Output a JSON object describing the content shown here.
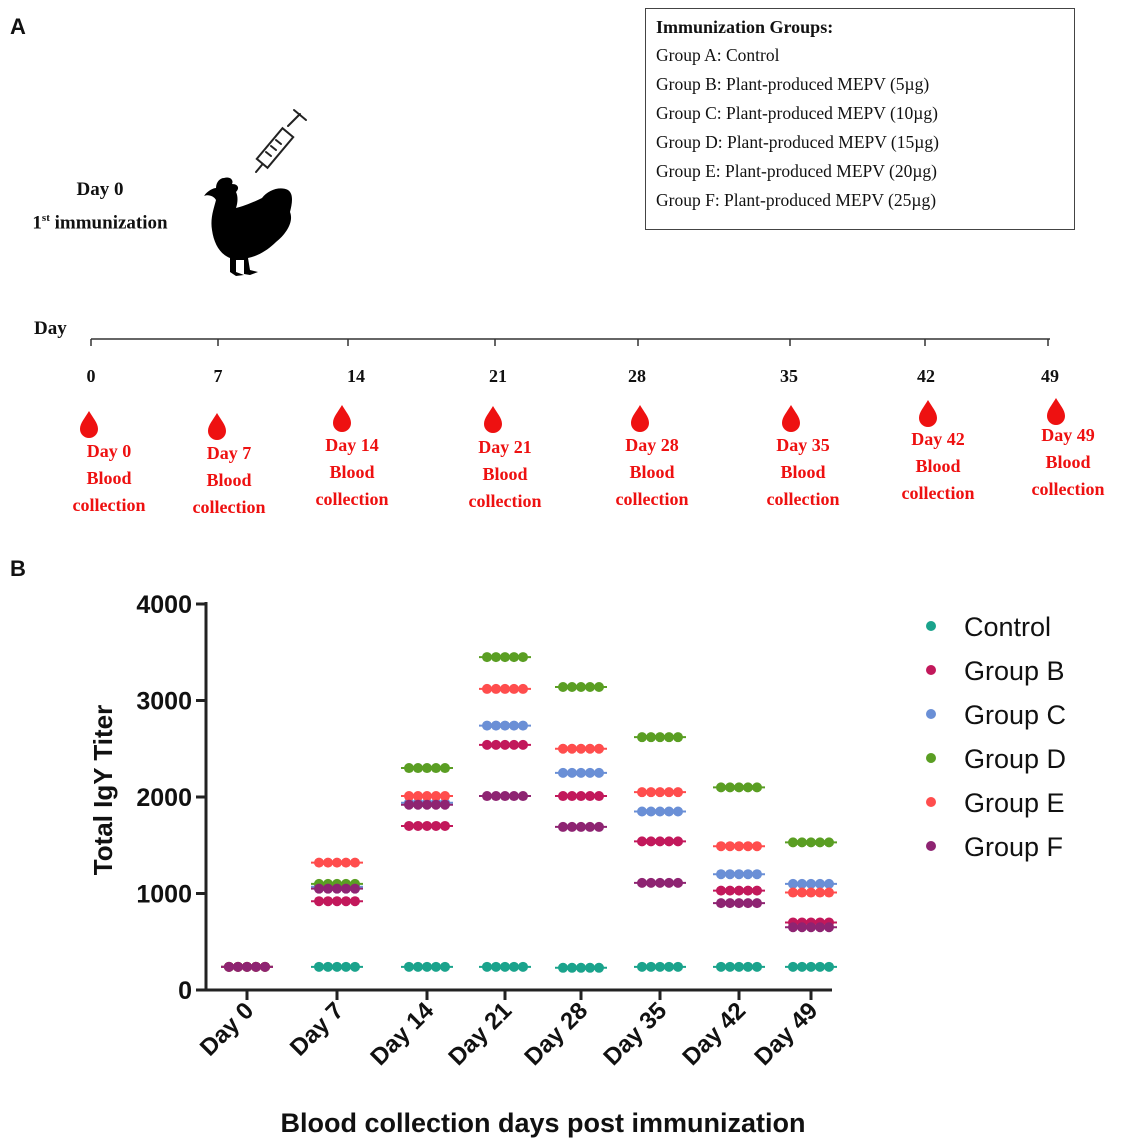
{
  "panel_a": {
    "label": "A",
    "first_event": {
      "day": "Day 0",
      "ordinal": "1",
      "ordinal_sup": "st",
      "text": " immunization"
    },
    "groups_box": {
      "title": "Immunization  Groups:",
      "items": [
        "Group A: Control",
        "Group B: Plant-produced  MEPV (5µg)",
        "Group C: Plant-produced  MEPV (10µg)",
        "Group D: Plant-produced  MEPV (15µg)",
        "Group E: Plant-produced  MEPV (20µg)",
        "Group F: Plant-produced  MEPV (25µg)"
      ]
    },
    "timeline": {
      "axis_label": "Day",
      "ticks": [
        "0",
        "7",
        "14",
        "21",
        "28",
        "35",
        "42",
        "49"
      ]
    },
    "collections": [
      {
        "day": "Day 0",
        "line2": "Blood",
        "line3": "collection"
      },
      {
        "day": "Day 7",
        "line2": "Blood",
        "line3": "collection"
      },
      {
        "day": "Day 14",
        "line2": "Blood",
        "line3": "collection"
      },
      {
        "day": "Day 21",
        "line2": "Blood",
        "line3": "collection"
      },
      {
        "day": "Day 28",
        "line2": "Blood",
        "line3": "collection"
      },
      {
        "day": "Day 35",
        "line2": "Blood",
        "line3": "collection"
      },
      {
        "day": "Day 42",
        "line2": "Blood",
        "line3": "collection"
      },
      {
        "day": "Day 49",
        "line2": "Blood",
        "line3": "collection"
      }
    ],
    "colors": {
      "blood": "#ee1111",
      "ink": "#111111"
    }
  },
  "chart_data": {
    "panel_label": "B",
    "type": "scatter",
    "title": "",
    "xlabel": "Blood collection days post immunization",
    "ylabel": "Total IgY Titer",
    "ylim": [
      0,
      4000
    ],
    "yticks": [
      0,
      1000,
      2000,
      3000,
      4000
    ],
    "categories": [
      "Day 0",
      "Day 7",
      "Day 14",
      "Day 21",
      "Day 28",
      "Day 35",
      "Day 42",
      "Day 49"
    ],
    "legend_position": "right",
    "series": [
      {
        "name": "Control",
        "color": "#1aa38c",
        "values": [
          240,
          240,
          240,
          240,
          230,
          240,
          240,
          240
        ]
      },
      {
        "name": "Group B",
        "color": "#c2185b",
        "values": [
          240,
          920,
          1700,
          2540,
          2010,
          1540,
          1030,
          700
        ]
      },
      {
        "name": "Group C",
        "color": "#6a8fd6",
        "values": [
          240,
          1070,
          1940,
          2740,
          2250,
          1850,
          1200,
          1100
        ]
      },
      {
        "name": "Group D",
        "color": "#5a9e23",
        "values": [
          240,
          1100,
          2300,
          3450,
          3140,
          2620,
          2100,
          1530
        ]
      },
      {
        "name": "Group E",
        "color": "#ff4d4d",
        "values": [
          240,
          1320,
          2010,
          3120,
          2500,
          2050,
          1490,
          1010
        ]
      },
      {
        "name": "Group F",
        "color": "#8e2472",
        "values": [
          240,
          1050,
          1920,
          2010,
          1690,
          1110,
          900,
          650
        ]
      }
    ]
  }
}
